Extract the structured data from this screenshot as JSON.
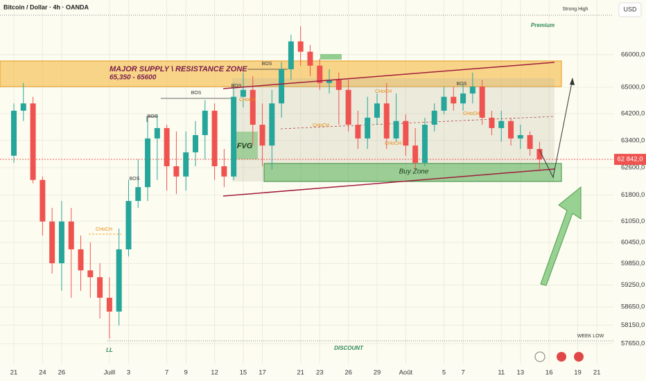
{
  "header": {
    "symbol": "Bitcoin / Dollar · 4h · OANDA",
    "currency": "USD"
  },
  "chart_data": {
    "type": "candlestick",
    "log_scale": true,
    "grid": true,
    "ylim": [
      57110,
      67710
    ],
    "xlim": [
      -1.45,
      62.73
    ],
    "yticks": [
      {
        "value": 66000,
        "label": "66000,0"
      },
      {
        "value": 65000,
        "label": "65000,0"
      },
      {
        "value": 64200,
        "label": "64200,0"
      },
      {
        "value": 63400,
        "label": "63400,0"
      },
      {
        "value": 62600,
        "label": "62600,0"
      },
      {
        "value": 61800,
        "label": "61800,0"
      },
      {
        "value": 61050,
        "label": "61050,0"
      },
      {
        "value": 60450,
        "label": "60450,0"
      },
      {
        "value": 59850,
        "label": "59850,0"
      },
      {
        "value": 59250,
        "label": "59250,0"
      },
      {
        "value": 58650,
        "label": "58650,0"
      },
      {
        "value": 58150,
        "label": "58150,0"
      },
      {
        "value": 57650,
        "label": "57650,0"
      }
    ],
    "xticks": [
      {
        "value": 0,
        "label": "21"
      },
      {
        "value": 3,
        "label": "24"
      },
      {
        "value": 5,
        "label": "26"
      },
      {
        "value": 10,
        "label": "Juill"
      },
      {
        "value": 12,
        "label": "3"
      },
      {
        "value": 16,
        "label": "7"
      },
      {
        "value": 18,
        "label": "9"
      },
      {
        "value": 21,
        "label": "12"
      },
      {
        "value": 24,
        "label": "15"
      },
      {
        "value": 26,
        "label": "17"
      },
      {
        "value": 30,
        "label": "21"
      },
      {
        "value": 32,
        "label": "23"
      },
      {
        "value": 35,
        "label": "26"
      },
      {
        "value": 38,
        "label": "29"
      },
      {
        "value": 41,
        "label": "Août"
      },
      {
        "value": 45,
        "label": "5"
      },
      {
        "value": 47,
        "label": "7"
      },
      {
        "value": 51,
        "label": "11"
      },
      {
        "value": 53,
        "label": "13"
      },
      {
        "value": 56,
        "label": "16"
      },
      {
        "value": 59,
        "label": "19"
      },
      {
        "value": 61,
        "label": "21"
      }
    ],
    "x": [
      0,
      1,
      2,
      3,
      4,
      5,
      6,
      7,
      8,
      9,
      10,
      11,
      12,
      13,
      14,
      15,
      16,
      17,
      18,
      19,
      20,
      21,
      22,
      23,
      24,
      25,
      26,
      27,
      28,
      29,
      30,
      31,
      32,
      33,
      34,
      35,
      36,
      37,
      38,
      39,
      40,
      41,
      42,
      43,
      44,
      45,
      46,
      47,
      48,
      49,
      50,
      51,
      52,
      53,
      54,
      55
    ],
    "up_color": "#26a69a",
    "down_color": "#ef5350",
    "series": [
      {
        "open": [
          62950,
          64290,
          64510,
          62240,
          61040,
          59860,
          61040,
          60250,
          59660,
          59470,
          58900,
          58520,
          60250,
          61630,
          62030,
          63460,
          63770,
          62640,
          62340,
          63050,
          63560,
          64290,
          62640,
          62340,
          64710,
          64920,
          63870,
          63250,
          64510,
          65550,
          66410,
          66090,
          65660,
          65130,
          65230,
          64920,
          63870,
          63460,
          64080,
          64510,
          63460,
          63980,
          63250,
          62740,
          63870,
          64290,
          64710,
          64510,
          64810,
          65020,
          64080,
          63770,
          63980,
          63460,
          63560,
          63150
        ],
        "high": [
          64510,
          65130,
          64710,
          62340,
          61430,
          61630,
          61430,
          60640,
          60450,
          59860,
          59470,
          60840,
          62240,
          62840,
          64080,
          64180,
          63870,
          63670,
          63670,
          63980,
          64610,
          64510,
          63150,
          65130,
          65450,
          65340,
          64510,
          64920,
          65770,
          66620,
          66880,
          66300,
          65870,
          65550,
          65450,
          65230,
          64290,
          64710,
          64810,
          65130,
          64810,
          64180,
          63770,
          64080,
          64510,
          65020,
          65020,
          65130,
          65450,
          65230,
          64290,
          64290,
          64080,
          63870,
          63670,
          63360
        ],
        "low": [
          62740,
          63980,
          62140,
          60640,
          59570,
          59090,
          58900,
          59090,
          58900,
          58330,
          57780,
          58140,
          60050,
          61430,
          61630,
          62240,
          61930,
          61830,
          61930,
          62640,
          62840,
          62240,
          62030,
          62240,
          64390,
          63250,
          62640,
          62540,
          64080,
          65230,
          65660,
          65340,
          64920,
          64810,
          63870,
          63670,
          63150,
          63150,
          63870,
          63150,
          63360,
          62950,
          62540,
          62640,
          63670,
          64180,
          64290,
          64290,
          64510,
          63870,
          63560,
          63360,
          63250,
          63150,
          62950,
          62540
        ],
        "close": [
          64290,
          64510,
          62240,
          61040,
          59860,
          61040,
          60250,
          59660,
          59470,
          58900,
          58520,
          60250,
          61630,
          62030,
          63460,
          63770,
          62640,
          62340,
          63050,
          63560,
          64290,
          62640,
          62340,
          64710,
          64920,
          63870,
          63250,
          64510,
          65550,
          66410,
          66090,
          65660,
          65130,
          65230,
          64920,
          63870,
          63460,
          64080,
          64510,
          63460,
          63980,
          63250,
          62740,
          63870,
          64290,
          64710,
          64510,
          64810,
          65020,
          64080,
          63770,
          63980,
          63460,
          63560,
          63150,
          62842
        ]
      }
    ],
    "last_price": {
      "value": 62842,
      "label": "62 842,0"
    },
    "annotations": [
      "MAJOR SUPPLY \\ RESISTANCE ZONE",
      "65,350 - 65600",
      "BOS",
      "BOS",
      "BOS",
      "BOS",
      "BOS",
      "BOS",
      "CHoCH",
      "CHoCH",
      "CHoCH",
      "CHoCH",
      "CHoCH",
      "CHoCH",
      "FVG",
      "Buy Zone",
      "Premium",
      "DISCOUNT",
      "Strong High",
      "WEEK LOW",
      "LL"
    ]
  }
}
